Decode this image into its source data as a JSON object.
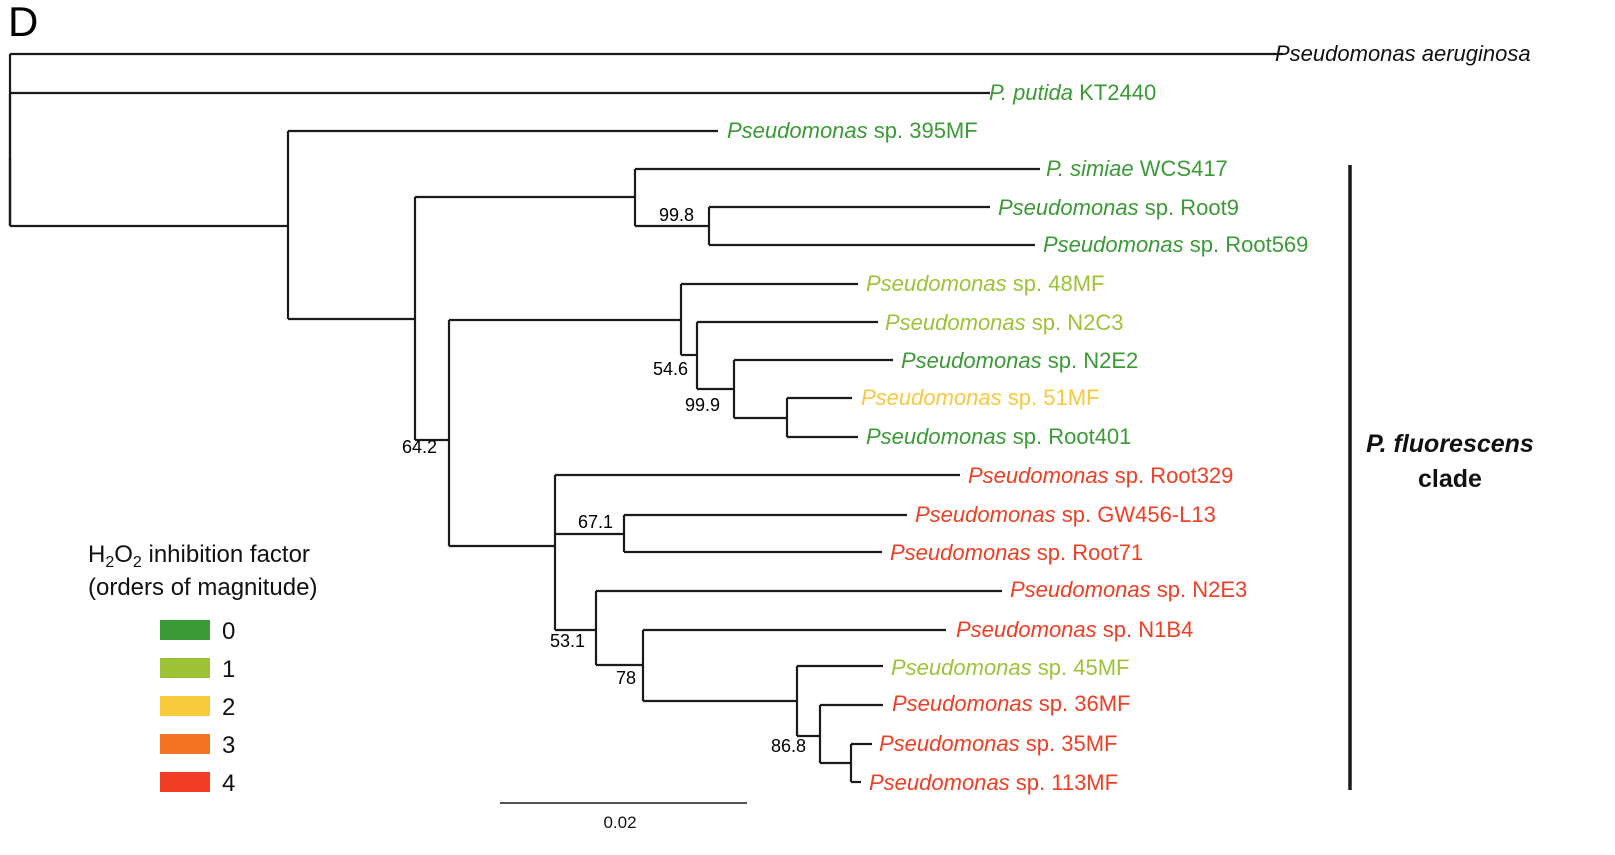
{
  "panel_label": "D",
  "colors": {
    "level_0": "#3a9a35",
    "level_1": "#9dc237",
    "level_2": "#f7c93c",
    "level_3": "#f37123",
    "level_4": "#ef3e23",
    "default": "#111111"
  },
  "leaves": [
    {
      "name": "Pseudomonas aeruginosa",
      "suffix": "",
      "level": "default"
    },
    {
      "name": "P. putida",
      "suffix": " KT2440",
      "level": "level_0"
    },
    {
      "name": "Pseudomonas",
      "suffix": " sp. 395MF",
      "level": "level_0"
    },
    {
      "name": "P. simiae",
      "suffix": " WCS417",
      "level": "level_0"
    },
    {
      "name": "Pseudomonas",
      "suffix": " sp. Root9",
      "level": "level_0"
    },
    {
      "name": "Pseudomonas",
      "suffix": " sp. Root569",
      "level": "level_0"
    },
    {
      "name": "Pseudomonas",
      "suffix": " sp. 48MF",
      "level": "level_1"
    },
    {
      "name": "Pseudomonas",
      "suffix": " sp. N2C3",
      "level": "level_1"
    },
    {
      "name": "Pseudomonas",
      "suffix": " sp. N2E2",
      "level": "level_0"
    },
    {
      "name": "Pseudomonas",
      "suffix": " sp. 51MF",
      "level": "level_2"
    },
    {
      "name": "Pseudomonas",
      "suffix": " sp. Root401",
      "level": "level_0"
    },
    {
      "name": "Pseudomonas",
      "suffix": " sp. Root329",
      "level": "level_4"
    },
    {
      "name": "Pseudomonas",
      "suffix": " sp. GW456-L13",
      "level": "level_4"
    },
    {
      "name": "Pseudomonas",
      "suffix": " sp. Root71",
      "level": "level_4"
    },
    {
      "name": "Pseudomonas",
      "suffix": " sp. N2E3",
      "level": "level_4"
    },
    {
      "name": "Pseudomonas",
      "suffix": " sp. N1B4",
      "level": "level_4"
    },
    {
      "name": "Pseudomonas",
      "suffix": " sp. 45MF",
      "level": "level_1"
    },
    {
      "name": "Pseudomonas",
      "suffix": " sp. 36MF",
      "level": "level_4"
    },
    {
      "name": "Pseudomonas",
      "suffix": " sp. 35MF",
      "level": "level_4"
    },
    {
      "name": "Pseudomonas",
      "suffix": " sp. 113MF",
      "level": "level_4"
    }
  ],
  "support_values": [
    "99.8",
    "54.6",
    "99.9",
    "64.2",
    "67.1",
    "53.1",
    "78",
    "86.8"
  ],
  "clade": {
    "italic": "P. fluorescens",
    "rest": "clade"
  },
  "legend": {
    "title_line1_prefix": "H",
    "title_line1_sub1": "2",
    "title_line1_mid": "O",
    "title_line1_sub2": "2",
    "title_line1_suffix": " inhibition factor",
    "title_line2": "(orders of magnitude)",
    "items": [
      {
        "label": "0",
        "color": "#3a9a35"
      },
      {
        "label": "1",
        "color": "#9dc237"
      },
      {
        "label": "2",
        "color": "#f7c93c"
      },
      {
        "label": "3",
        "color": "#f37123"
      },
      {
        "label": "4",
        "color": "#ef3e23"
      }
    ]
  },
  "scale_bar": {
    "label": "0.02"
  }
}
